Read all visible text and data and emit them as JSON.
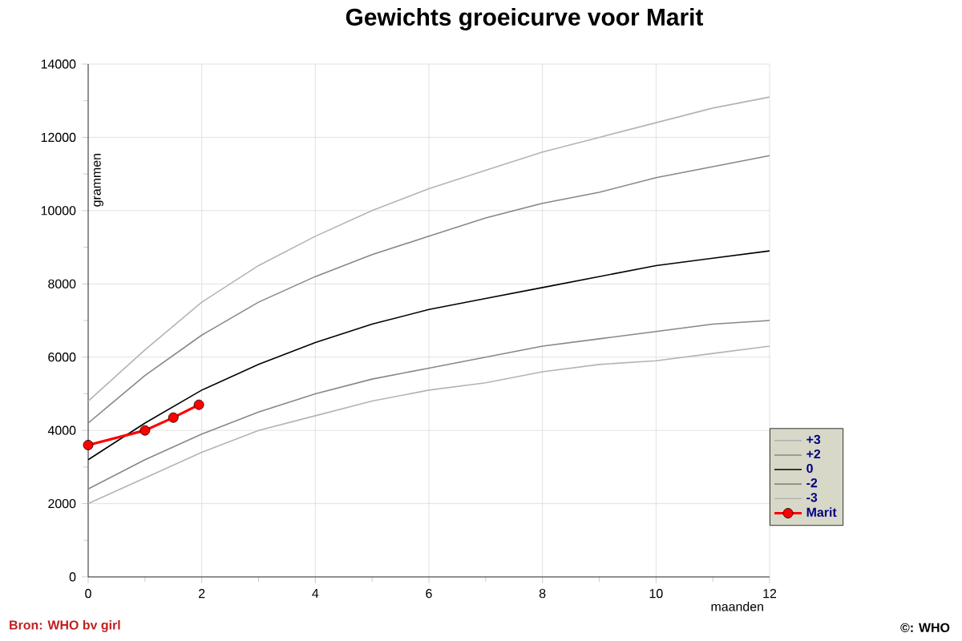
{
  "chart_data": {
    "type": "line",
    "title": "Gewichts groeicurve voor Marit",
    "xlabel": "maanden",
    "ylabel": "grammen",
    "xlim": [
      0,
      12
    ],
    "xticks": [
      0,
      2,
      4,
      6,
      8,
      10,
      12
    ],
    "ylim": [
      0,
      14000
    ],
    "yticks": [
      0,
      2000,
      4000,
      6000,
      8000,
      10000,
      12000,
      14000
    ],
    "grid": true,
    "legend": "right",
    "marker": "none",
    "annotations": [
      "Bron: WHO bv girl",
      "©: WHO"
    ],
    "series": [
      {
        "name": "+3",
        "color": "#b4b4b4",
        "x": [
          0,
          1,
          2,
          3,
          4,
          5,
          6,
          7,
          8,
          9,
          10,
          11,
          12
        ],
        "values": [
          4800,
          6200,
          7500,
          8500,
          9300,
          10000,
          10600,
          11100,
          11600,
          12000,
          12400,
          12800,
          13100
        ]
      },
      {
        "name": "+2",
        "color": "#888888",
        "x": [
          0,
          1,
          2,
          3,
          4,
          5,
          6,
          7,
          8,
          9,
          10,
          11,
          12
        ],
        "values": [
          4200,
          5500,
          6600,
          7500,
          8200,
          8800,
          9300,
          9800,
          10200,
          10500,
          10900,
          11200,
          11500
        ]
      },
      {
        "name": "0",
        "color": "#000000",
        "x": [
          0,
          1,
          2,
          3,
          4,
          5,
          6,
          7,
          8,
          9,
          10,
          11,
          12
        ],
        "values": [
          3200,
          4200,
          5100,
          5800,
          6400,
          6900,
          7300,
          7600,
          7900,
          8200,
          8500,
          8700,
          8900
        ]
      },
      {
        "name": "-2",
        "color": "#888888",
        "x": [
          0,
          1,
          2,
          3,
          4,
          5,
          6,
          7,
          8,
          9,
          10,
          11,
          12
        ],
        "values": [
          2400,
          3200,
          3900,
          4500,
          5000,
          5400,
          5700,
          6000,
          6300,
          6500,
          6700,
          6900,
          7000
        ]
      },
      {
        "name": "-3",
        "color": "#b4b4b4",
        "x": [
          0,
          1,
          2,
          3,
          4,
          5,
          6,
          7,
          8,
          9,
          10,
          11,
          12
        ],
        "values": [
          2000,
          2700,
          3400,
          4000,
          4400,
          4800,
          5100,
          5300,
          5600,
          5800,
          5900,
          6100,
          6300
        ]
      },
      {
        "name": "Marit",
        "color": "#ff0000",
        "marker": "circle",
        "x": [
          0,
          1,
          1.5,
          1.95
        ],
        "values": [
          3600,
          4000,
          4350,
          4700
        ]
      }
    ]
  }
}
